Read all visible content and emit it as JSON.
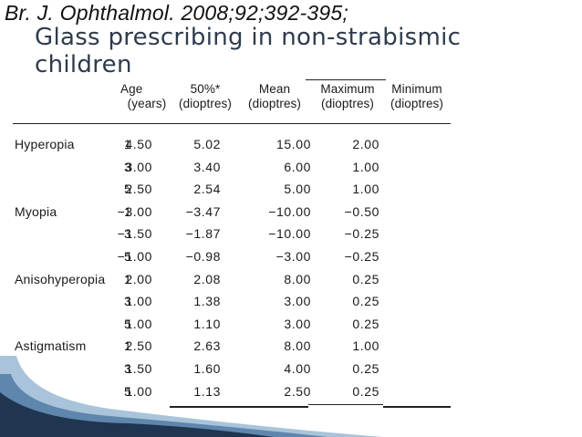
{
  "citation": "Br. J. Ophthalmol. 2008;92;392-395;",
  "title": {
    "line1": "Glass prescribing in non-strabismic",
    "line2": "children"
  },
  "table": {
    "headers": [
      {
        "line1": "Age",
        "line2": "(years)"
      },
      {
        "line1": "50%*",
        "line2": "(dioptres)"
      },
      {
        "line1": "Mean",
        "line2": "(dioptres)"
      },
      {
        "line1": "Maximum",
        "line2": "(dioptres)"
      },
      {
        "line1": "Minimum",
        "line2": "(dioptres)"
      }
    ],
    "rows": [
      {
        "label": "Hyperopia",
        "age": "1",
        "p50": "4.50",
        "mean": "5.02",
        "max": "15.00",
        "min": "2.00"
      },
      {
        "label": "",
        "age": "3",
        "p50": "3.00",
        "mean": "3.40",
        "max": "6.00",
        "min": "1.00"
      },
      {
        "label": "",
        "age": "5",
        "p50": "2.50",
        "mean": "2.54",
        "max": "5.00",
        "min": "1.00"
      },
      {
        "label": "Myopia",
        "age": "1",
        "p50": "−3.00",
        "mean": "−3.47",
        "max": "−10.00",
        "min": "−0.50"
      },
      {
        "label": "",
        "age": "3",
        "p50": "−1.50",
        "mean": "−1.87",
        "max": "−10.00",
        "min": "−0.25"
      },
      {
        "label": "",
        "age": "5",
        "p50": "−1.00",
        "mean": "−0.98",
        "max": "−3.00",
        "min": "−0.25"
      },
      {
        "label": "Anisohyperopia",
        "age": "1",
        "p50": "2.00",
        "mean": "2.08",
        "max": "8.00",
        "min": "0.25"
      },
      {
        "label": "",
        "age": "3",
        "p50": "1.00",
        "mean": "1.38",
        "max": "3.00",
        "min": "0.25"
      },
      {
        "label": "",
        "age": "5",
        "p50": "1.00",
        "mean": "1.10",
        "max": "3.00",
        "min": "0.25"
      },
      {
        "label": "Astigmatism",
        "age": "1",
        "p50": "2.50",
        "mean": "2.63",
        "max": "8.00",
        "min": "1.00"
      },
      {
        "label": "",
        "age": "3",
        "p50": "1.50",
        "mean": "1.60",
        "max": "4.00",
        "min": "0.25"
      },
      {
        "label": "",
        "age": "5",
        "p50": "1.00",
        "mean": "1.13",
        "max": "2.50",
        "min": "0.25"
      }
    ]
  },
  "colors": {
    "title": "#2f3b4c",
    "swoosh_dark": "#1f3550",
    "swoosh_light": "#a9c4da"
  }
}
